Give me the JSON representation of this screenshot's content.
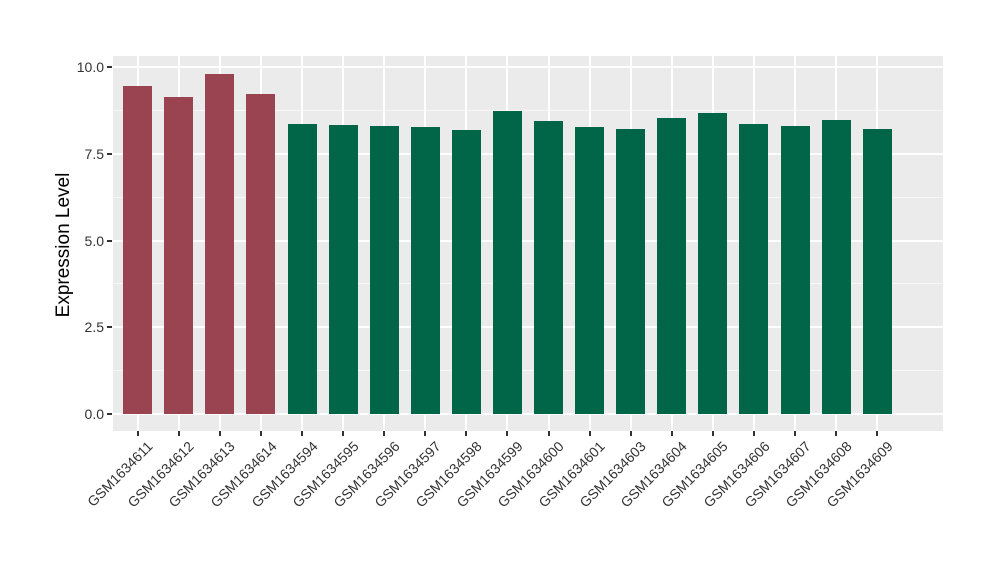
{
  "chart_data": {
    "type": "bar",
    "title": "",
    "xlabel": "",
    "ylabel": "Expression Level",
    "categories": [
      "GSM1634611",
      "GSM1634612",
      "GSM1634613",
      "GSM1634614",
      "GSM1634594",
      "GSM1634595",
      "GSM1634596",
      "GSM1634597",
      "GSM1634598",
      "GSM1634599",
      "GSM1634600",
      "GSM1634601",
      "GSM1634603",
      "GSM1634604",
      "GSM1634605",
      "GSM1634606",
      "GSM1634607",
      "GSM1634608",
      "GSM1634609"
    ],
    "values": [
      9.44,
      9.13,
      9.78,
      9.23,
      8.34,
      8.32,
      8.31,
      8.28,
      8.18,
      8.72,
      8.44,
      8.26,
      8.22,
      8.53,
      8.66,
      8.34,
      8.29,
      8.46,
      8.22
    ],
    "bar_groups": [
      "highlight",
      "highlight",
      "highlight",
      "highlight",
      "normal",
      "normal",
      "normal",
      "normal",
      "normal",
      "normal",
      "normal",
      "normal",
      "normal",
      "normal",
      "normal",
      "normal",
      "normal",
      "normal",
      "normal"
    ],
    "group_colors": {
      "highlight": "#9A4351",
      "normal": "#016647"
    },
    "ylim": [
      0,
      10.31
    ],
    "yticks": [
      0,
      2.5,
      5,
      7.5,
      10
    ],
    "ytick_labels": [
      "0.0",
      "2.5",
      "5.0",
      "7.5",
      "10.0"
    ],
    "y_minor_ticks": [
      1.25,
      3.75,
      6.25,
      8.75
    ],
    "grid": "on",
    "legend": "none",
    "panel_bg": "#EBEBEB",
    "grid_major_color": "#FFFFFF",
    "grid_minor_color": "#F7F7F7",
    "axis_text_color": "#333333",
    "x_label_rotation_deg": 45,
    "bar_width_frac": 0.7
  }
}
